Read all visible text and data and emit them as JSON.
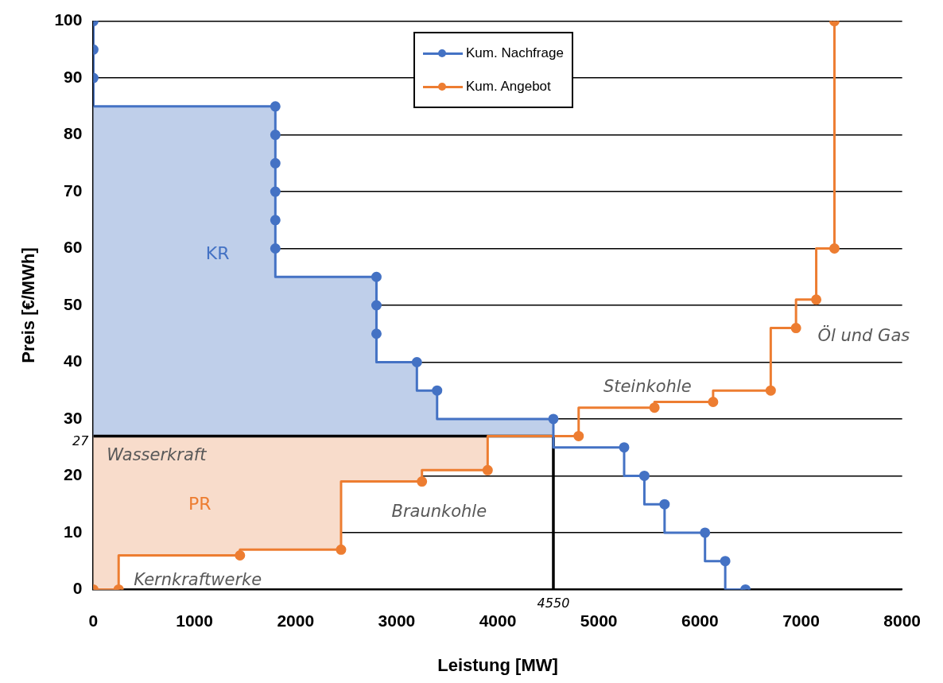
{
  "chart_data": {
    "type": "step",
    "xlabel": "Leistung [MW]",
    "ylabel": "Preis [€/MWh]",
    "xlim": [
      0,
      8000
    ],
    "xticks": [
      0,
      1000,
      2000,
      3000,
      4000,
      5000,
      6000,
      7000,
      8000
    ],
    "ylim": [
      0,
      100
    ],
    "yticks": [
      0,
      10,
      20,
      30,
      40,
      50,
      60,
      70,
      80,
      90,
      100
    ],
    "grid": "y",
    "legend": "top",
    "marker": "circle",
    "series": [
      {
        "type": "area",
        "name": "KR",
        "color": "#bfcfea",
        "marker": "none",
        "x": [
          0,
          0,
          1800,
          1800,
          2800,
          2800,
          3200,
          3200,
          3400,
          3400,
          4550,
          4550
        ],
        "values": [
          27,
          85,
          85,
          55,
          55,
          40,
          40,
          35,
          35,
          30,
          30,
          27
        ]
      },
      {
        "type": "area",
        "name": "PR",
        "color": "#f8dccb",
        "marker": "none",
        "x": [
          0,
          0,
          250,
          250,
          1450,
          1450,
          2450,
          2450,
          3250,
          3250,
          3900,
          3900
        ],
        "values": [
          27,
          0,
          0,
          6,
          6,
          7,
          7,
          19,
          19,
          21,
          21,
          27
        ]
      },
      {
        "type": "line",
        "color": "#000000",
        "marker": "none",
        "x": [
          0,
          4550,
          4550
        ],
        "values": [
          27,
          27,
          0
        ]
      },
      {
        "name": "Kum. Nachfrage",
        "color": "#4472c4",
        "x": [
          0,
          0,
          0,
          1800,
          1800,
          1800,
          1800,
          1800,
          1800,
          2800,
          2800,
          2800,
          3200,
          3400,
          4550,
          5250,
          5450,
          5650,
          6050,
          6250,
          6450
        ],
        "values": [
          100,
          95,
          90,
          85,
          80,
          75,
          70,
          65,
          60,
          55,
          50,
          45,
          40,
          35,
          30,
          25,
          20,
          15,
          10,
          5,
          0
        ]
      },
      {
        "name": "Kum. Angebot",
        "color": "#ed7d31",
        "x": [
          0,
          250,
          1450,
          2450,
          3250,
          3900,
          4800,
          5550,
          6130,
          6700,
          6950,
          7150,
          7330,
          7330
        ],
        "values": [
          0,
          0,
          6,
          7,
          19,
          21,
          27,
          32,
          33,
          35,
          46,
          51,
          60,
          100
        ]
      }
    ],
    "annotations": [
      "Wasserkraft",
      "Kernkraftwerke",
      "Braunkohle",
      "Steinkohle",
      "Öl und Gas",
      {
        "text": "27",
        "x": 0,
        "y": 27
      },
      {
        "text": "4550",
        "x": 4550,
        "y": 0
      }
    ]
  }
}
